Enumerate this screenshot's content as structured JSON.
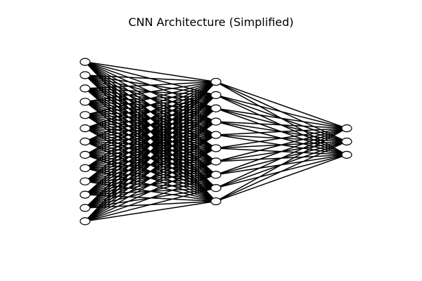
{
  "title": "CNN Architecture (Simplified)",
  "network": {
    "layers": [
      {
        "neurons": 13
      },
      {
        "neurons": 10
      },
      {
        "neurons": 3
      }
    ],
    "connectivity": "fully-connected",
    "edge_color": "#000000",
    "node_fill": "#ffffff",
    "node_stroke": "#000000"
  }
}
